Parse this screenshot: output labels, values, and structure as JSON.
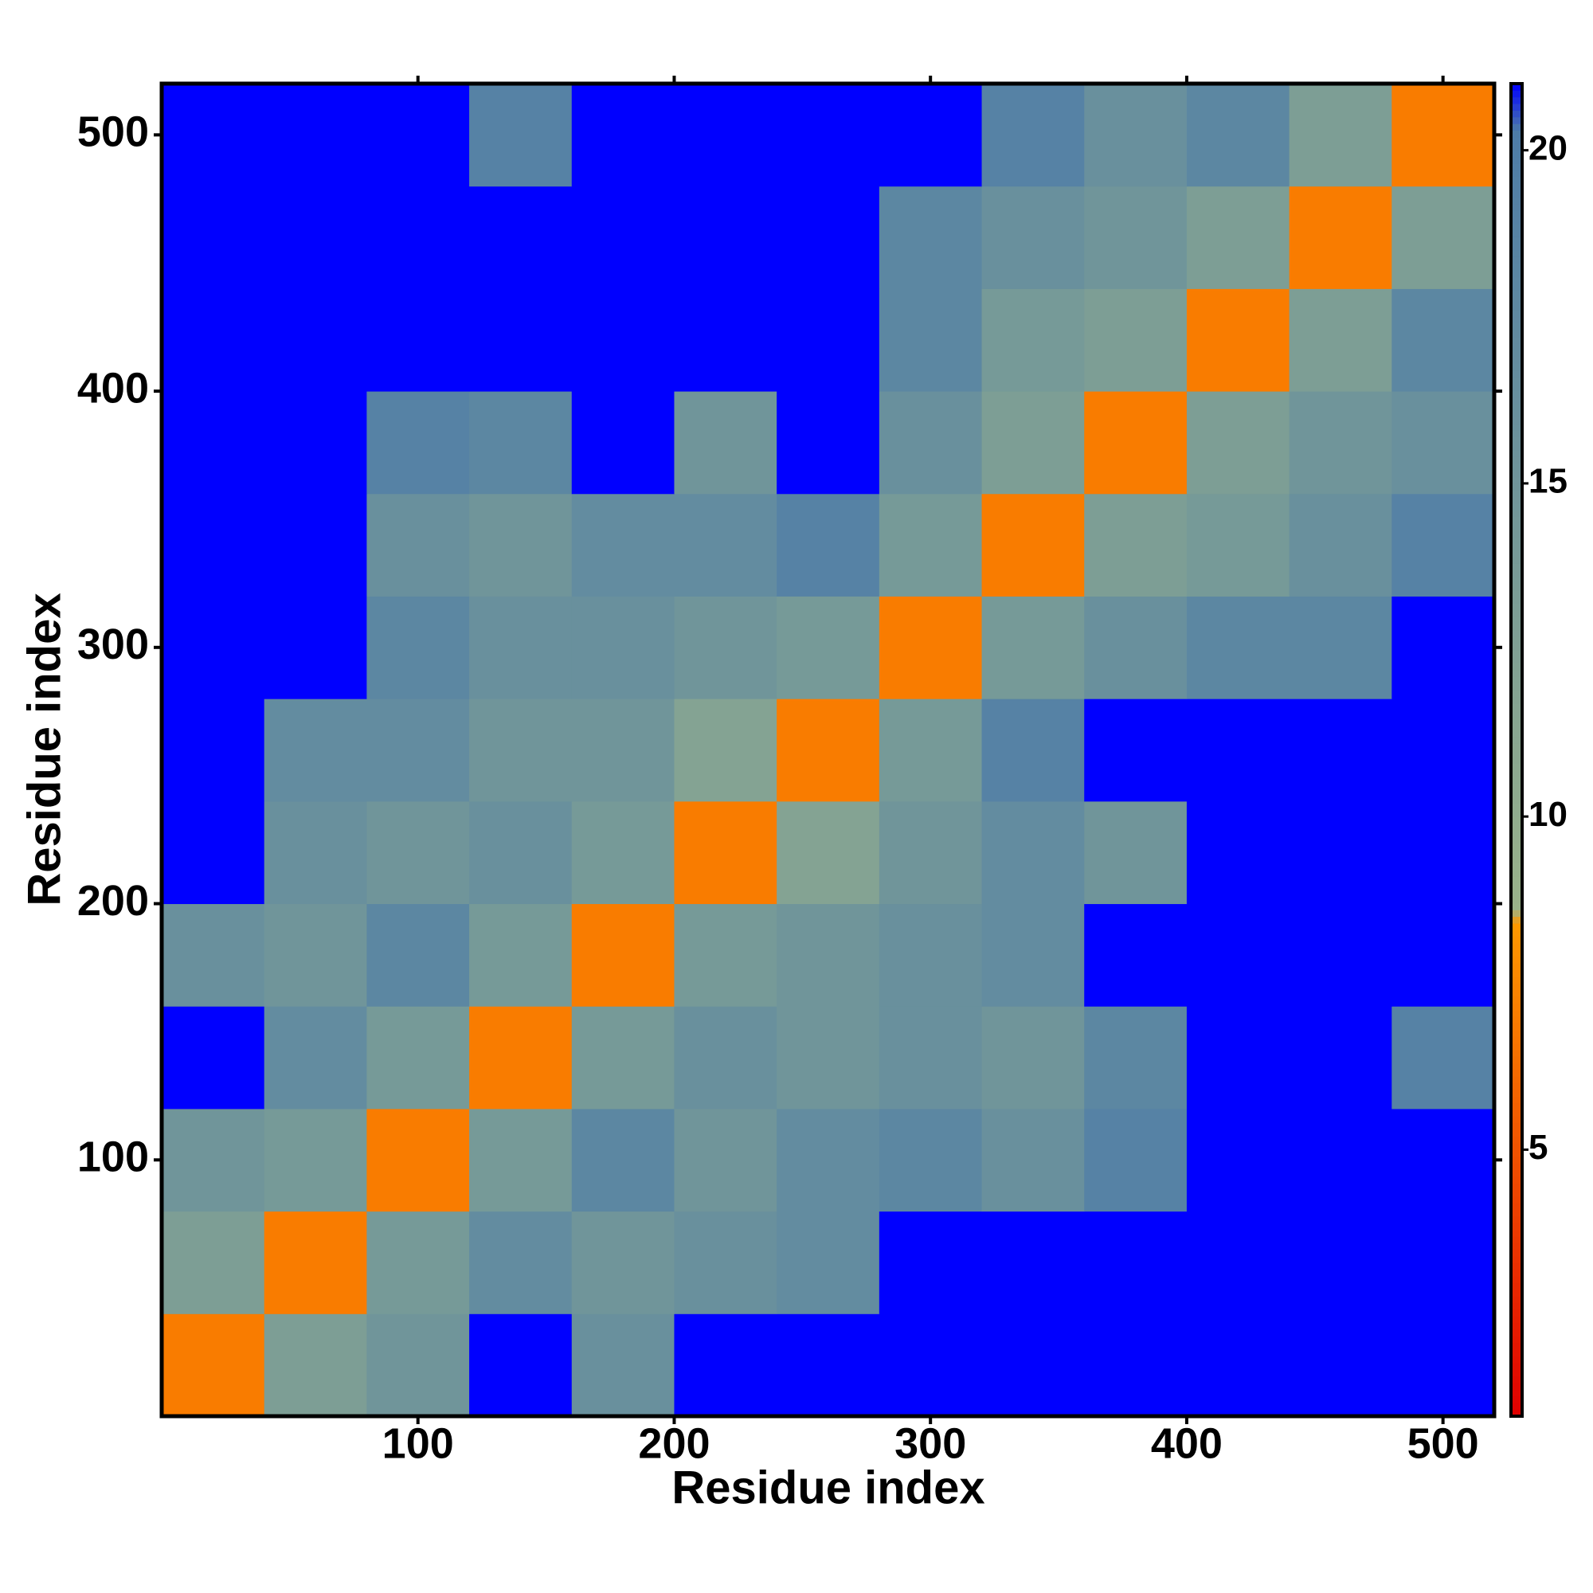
{
  "chart_data": {
    "type": "heatmap",
    "xlabel": "Residue index",
    "ylabel": "Residue index",
    "x": [
      20,
      60,
      100,
      140,
      180,
      220,
      260,
      300,
      340,
      380,
      420,
      460,
      500
    ],
    "y": [
      20,
      60,
      100,
      140,
      180,
      220,
      260,
      300,
      340,
      380,
      420,
      460,
      500
    ],
    "z": [
      [
        7,
        13,
        15,
        21,
        16,
        21,
        21,
        21,
        21,
        21,
        21,
        21,
        21
      ],
      [
        13,
        7,
        14,
        17,
        15,
        16,
        17,
        21,
        21,
        21,
        21,
        21,
        21
      ],
      [
        15,
        14,
        7,
        14,
        18,
        15,
        17,
        18,
        16,
        19,
        21,
        21,
        21
      ],
      [
        21,
        17,
        14,
        7,
        14,
        16,
        15,
        16,
        15,
        18,
        21,
        21,
        19
      ],
      [
        16,
        15,
        18,
        14,
        7,
        14,
        15,
        16,
        17,
        21,
        21,
        21,
        21
      ],
      [
        21,
        16,
        15,
        16,
        14,
        7,
        12,
        15,
        17,
        15,
        21,
        21,
        21
      ],
      [
        21,
        17,
        17,
        15,
        15,
        12,
        7,
        14,
        19,
        21,
        21,
        21,
        21
      ],
      [
        21,
        21,
        18,
        16,
        16,
        15,
        14,
        7,
        14,
        16,
        18,
        18,
        21
      ],
      [
        21,
        21,
        16,
        15,
        17,
        17,
        19,
        14,
        7,
        13,
        14,
        16,
        19
      ],
      [
        21,
        21,
        19,
        18,
        21,
        15,
        21,
        16,
        13,
        7,
        13,
        15,
        16
      ],
      [
        21,
        21,
        21,
        21,
        21,
        21,
        21,
        18,
        14,
        13,
        7,
        13,
        18
      ],
      [
        21,
        21,
        21,
        21,
        21,
        21,
        21,
        18,
        16,
        15,
        13,
        7,
        13
      ],
      [
        21,
        21,
        21,
        19,
        21,
        21,
        21,
        21,
        19,
        16,
        18,
        13,
        7
      ]
    ],
    "xlim": [
      0,
      520
    ],
    "ylim": [
      0,
      520
    ],
    "xticks": [
      100,
      200,
      300,
      400,
      500
    ],
    "yticks": [
      100,
      200,
      300,
      400,
      500
    ],
    "zlim": [
      1,
      21
    ],
    "zticks": [
      5,
      10,
      15,
      20
    ],
    "colorscale": [
      "#e00000",
      "#ff9900",
      "#9ab38a",
      "#4d7ca8",
      "#0000ff"
    ]
  }
}
